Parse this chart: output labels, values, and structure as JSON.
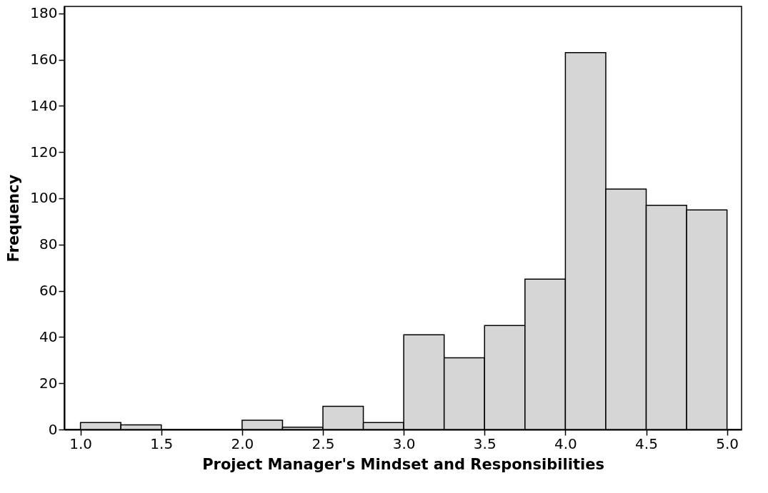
{
  "chart_data": {
    "type": "histogram",
    "xlabel": "Project Manager's Mindset and Responsibilities",
    "ylabel": "Frequency",
    "bins": [
      1.0,
      1.25,
      1.5,
      1.75,
      2.0,
      2.25,
      2.5,
      2.75,
      3.0,
      3.25,
      3.5,
      3.75,
      4.0,
      4.25,
      4.5,
      4.75,
      5.0
    ],
    "values": [
      3,
      2,
      0,
      0,
      4,
      1,
      10,
      3,
      41,
      31,
      45,
      65,
      163,
      104,
      97,
      95
    ],
    "color": "#d6d6d6",
    "xlim": [
      0.9,
      5.09
    ],
    "xticks": [
      {
        "value": 1,
        "label": "1.0"
      },
      {
        "value": 1.5,
        "label": "1.5"
      },
      {
        "value": 2,
        "label": "2.0"
      },
      {
        "value": 2.5,
        "label": "2.5"
      },
      {
        "value": 3,
        "label": "3.0"
      },
      {
        "value": 3.5,
        "label": "3.5"
      },
      {
        "value": 4,
        "label": "4.0"
      },
      {
        "value": 4.5,
        "label": "4.5"
      },
      {
        "value": 5,
        "label": "5.0"
      }
    ],
    "ylim": [
      0,
      183
    ],
    "yticks": [
      0,
      20,
      40,
      60,
      80,
      100,
      120,
      140,
      160,
      180
    ],
    "grid": false
  }
}
